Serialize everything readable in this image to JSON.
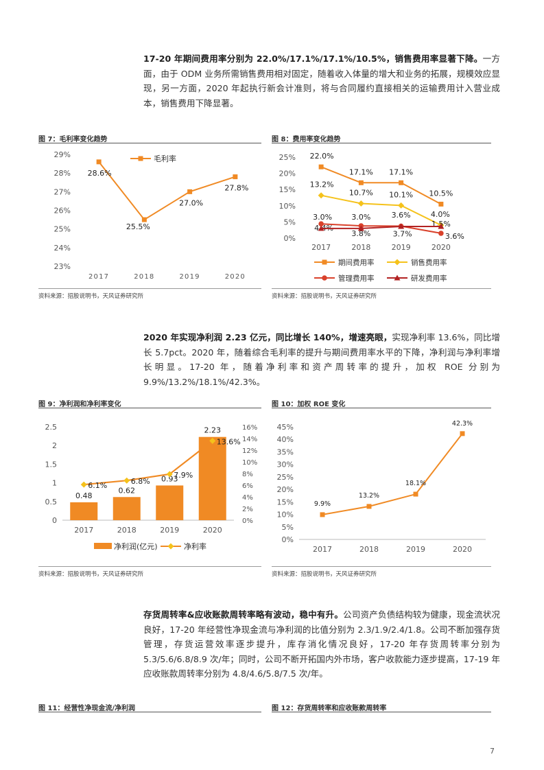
{
  "paragraphs": {
    "p1": {
      "bold": "17-20 年期间费用率分别为 22.0%/17.1%/17.1%/10.5%，销售费用率显著下降。",
      "text": "一方面，由于 ODM 业务所需销售费用相对固定，随着收入体量的增大和业务的拓展，规模效应显现，另一方面，2020 年起执行新会计准则，将与合同履约直接相关的运输费用计入营业成本，销售费用下降显著。"
    },
    "p2": {
      "bold": "2020 年实现净利润 2.23 亿元，同比增长 140%，增速亮眼，",
      "text": "实现净利率 13.6%，同比增长 5.7pct。2020 年，随着综合毛利率的提升与期间费用率水平的下降，净利润与净利率增长明显。17-20 年，随着净利率和资产周转率的提升，加权 ROE 分别为 9.9%/13.2%/18.1%/42.3%。"
    },
    "p3": {
      "bold": "存货周转率&应收账款周转率略有波动，稳中有升。",
      "text": "公司资产负债结构较为健康，现金流状况良好，17-20 年经营性净现金流与净利润的比值分别为 2.3/1.9/2.4/1.8。公司不断加强存货管理，存货运营效率逐步提升，库存消化情况良好，17-20 年存货周转率分别为 5.3/5.6/6.8/8.9 次/年；同时，公司不断开拓国内外市场，客户收款能力逐步提高，17-19 年应收账款周转率分别为 4.8/4.6/5.8/7.5 次/年。"
    }
  },
  "figures": {
    "fig7_title": "图 7：毛利率变化趋势",
    "fig8_title": "图 8：费用率变化趋势",
    "fig9_title": "图 9：净利润和净利率变化",
    "fig10_title": "图 10：加权 ROE 变化",
    "fig11_title": "图 11：经营性净现金流/净利润",
    "fig12_title": "图 12：存货周转率和应收账款周转率",
    "source": "资料来源：招股说明书，天风证券研究所"
  },
  "page_number": "7",
  "colors": {
    "orange": "#F08A24",
    "yellow": "#F5C21B",
    "red": "#D9412B",
    "darkred": "#B22222"
  },
  "chart_data": [
    {
      "id": "fig7",
      "type": "line",
      "categories": [
        "2017",
        "2018",
        "2019",
        "2020"
      ],
      "series": [
        {
          "name": "毛利率",
          "values": [
            28.6,
            25.5,
            27.0,
            27.8
          ],
          "labels": [
            "28.6%",
            "25.5%",
            "27.0%",
            "27.8%"
          ]
        }
      ],
      "ylim": [
        23,
        29
      ],
      "yticks": [
        "23%",
        "24%",
        "25%",
        "26%",
        "27%",
        "28%",
        "29%"
      ],
      "legend": "top"
    },
    {
      "id": "fig8",
      "type": "line",
      "categories": [
        "2017",
        "2018",
        "2019",
        "2020"
      ],
      "series": [
        {
          "name": "期间费用率",
          "values": [
            22.0,
            17.1,
            17.1,
            10.5
          ],
          "labels": [
            "22.0%",
            "17.1%",
            "17.1%",
            "10.5%"
          ]
        },
        {
          "name": "销售费用率",
          "values": [
            13.2,
            10.7,
            10.1,
            4.0
          ],
          "labels": [
            "13.2%",
            "10.7%",
            "10.1%",
            "4.0%"
          ]
        },
        {
          "name": "管理费用率",
          "values": [
            4.4,
            3.8,
            3.7,
            1.5
          ],
          "labels": [
            "4.4%",
            "3.8%",
            "3.7%",
            "1.5%"
          ]
        },
        {
          "name": "研发费用率",
          "values": [
            3.0,
            3.0,
            3.6,
            3.6
          ],
          "labels": [
            "3.0%",
            "3.0%",
            "3.6%",
            "3.6%"
          ]
        }
      ],
      "ylim": [
        0,
        25
      ],
      "yticks": [
        "0%",
        "5%",
        "10%",
        "15%",
        "20%",
        "25%"
      ],
      "legend": "bottom"
    },
    {
      "id": "fig9",
      "type": "bar",
      "categories": [
        "2017",
        "2018",
        "2019",
        "2020"
      ],
      "series": [
        {
          "name": "净利润(亿元)",
          "values": [
            0.48,
            0.62,
            0.93,
            2.23
          ],
          "labels": [
            "0.48",
            "0.62",
            "0.93",
            "2.23"
          ]
        },
        {
          "name": "净利率",
          "values": [
            6.1,
            6.8,
            7.9,
            13.6
          ],
          "labels": [
            "6.1%",
            "6.8%",
            "7.9%",
            "13.6%"
          ]
        }
      ],
      "ylim": [
        0,
        2.5
      ],
      "yticks": [
        "0",
        "0.5",
        "1",
        "1.5",
        "2",
        "2.5"
      ],
      "y2lim": [
        0,
        16
      ],
      "y2ticks": [
        "0%",
        "2%",
        "4%",
        "6%",
        "8%",
        "10%",
        "12%",
        "14%",
        "16%"
      ],
      "legend": "bottom"
    },
    {
      "id": "fig10",
      "type": "line",
      "categories": [
        "2017",
        "2018",
        "2019",
        "2020"
      ],
      "series": [
        {
          "values": [
            9.9,
            13.2,
            18.1,
            42.3
          ],
          "labels": [
            "9.9%",
            "13.2%",
            "18.1%",
            "42.3%"
          ]
        }
      ],
      "ylim": [
        0,
        45
      ],
      "yticks": [
        "0%",
        "5%",
        "10%",
        "15%",
        "20%",
        "25%",
        "30%",
        "35%",
        "40%",
        "45%"
      ]
    }
  ]
}
